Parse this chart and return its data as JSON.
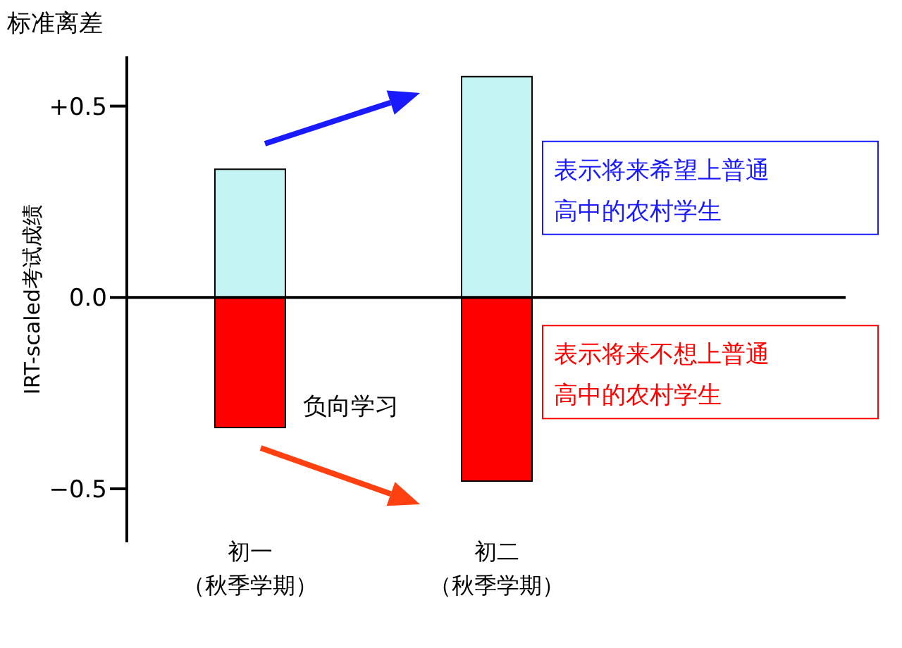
{
  "chart_data": {
    "type": "bar",
    "title": "标准离差",
    "ylabel": "IRT-scaled考试成绩",
    "categories": [
      "初一（秋季学期）",
      "初二（秋季学期）"
    ],
    "stacked": true,
    "series": [
      {
        "name": "表示将来希望上普通高中的农村学生",
        "color": "#c4f4f4",
        "values": [
          0.335,
          0.577
        ]
      },
      {
        "name": "表示将来不想上普通高中的农村学生",
        "color": "#ff0000",
        "values": [
          -0.34,
          -0.48
        ]
      }
    ],
    "ylim": [
      -0.64,
      0.63
    ],
    "yticks": [
      {
        "value": 0.5,
        "label": "+0.5"
      },
      {
        "value": 0,
        "label": "0.0"
      },
      {
        "value": -0.5,
        "label": "−0.5"
      }
    ],
    "legend": "right",
    "annotations": [
      "负向学习"
    ]
  }
}
